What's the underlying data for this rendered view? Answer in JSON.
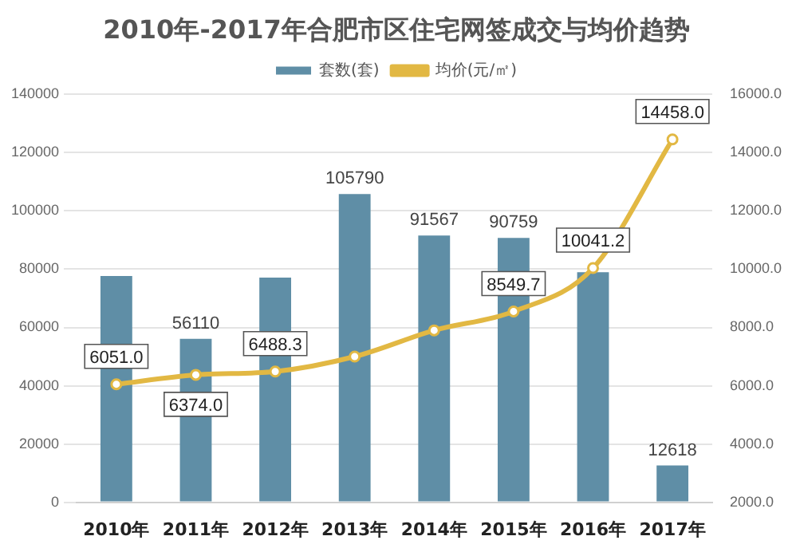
{
  "chart_data": {
    "type": "bar",
    "title": "2010年-2017年合肥市区住宅网签成交与均价趋势",
    "categories": [
      "2010年",
      "2011年",
      "2012年",
      "2013年",
      "2014年",
      "2015年",
      "2016年",
      "2017年"
    ],
    "series": [
      {
        "name": "套数(套)",
        "color": "#5f8ea6",
        "values": [
          77700,
          56110,
          77100,
          105790,
          91567,
          90759,
          79000,
          12618
        ],
        "value_labels": [
          null,
          "56110",
          null,
          "105790",
          "91567",
          "90759",
          null,
          "12618"
        ]
      },
      {
        "name": "均价(元/㎡)",
        "type": "line",
        "axis": "y2",
        "color": "#e2b843",
        "marker": "circle",
        "values": [
          6051.0,
          6374.0,
          6488.3,
          7000,
          7900,
          8549.7,
          10041.2,
          14458.0
        ],
        "value_labels": [
          "6051.0",
          "6374.0",
          "6488.3",
          null,
          null,
          "8549.7",
          "10041.2",
          "14458.0"
        ]
      }
    ],
    "ylim": [
      0,
      140000
    ],
    "yticks": [
      0,
      20000,
      40000,
      60000,
      80000,
      100000,
      120000,
      140000
    ],
    "y2lim": [
      2000,
      16000
    ],
    "y2ticks": [
      {
        "value": 2000,
        "label": "2000.0"
      },
      {
        "value": 4000,
        "label": "4000.0"
      },
      {
        "value": 6000,
        "label": "6000.0"
      },
      {
        "value": 8000,
        "label": "8000.0"
      },
      {
        "value": 10000,
        "label": "10000.0"
      },
      {
        "value": 12000,
        "label": "12000.0"
      },
      {
        "value": 14000,
        "label": "14000.0"
      },
      {
        "value": 16000,
        "label": "16000.0"
      }
    ],
    "grid": "y",
    "legend": "top"
  }
}
